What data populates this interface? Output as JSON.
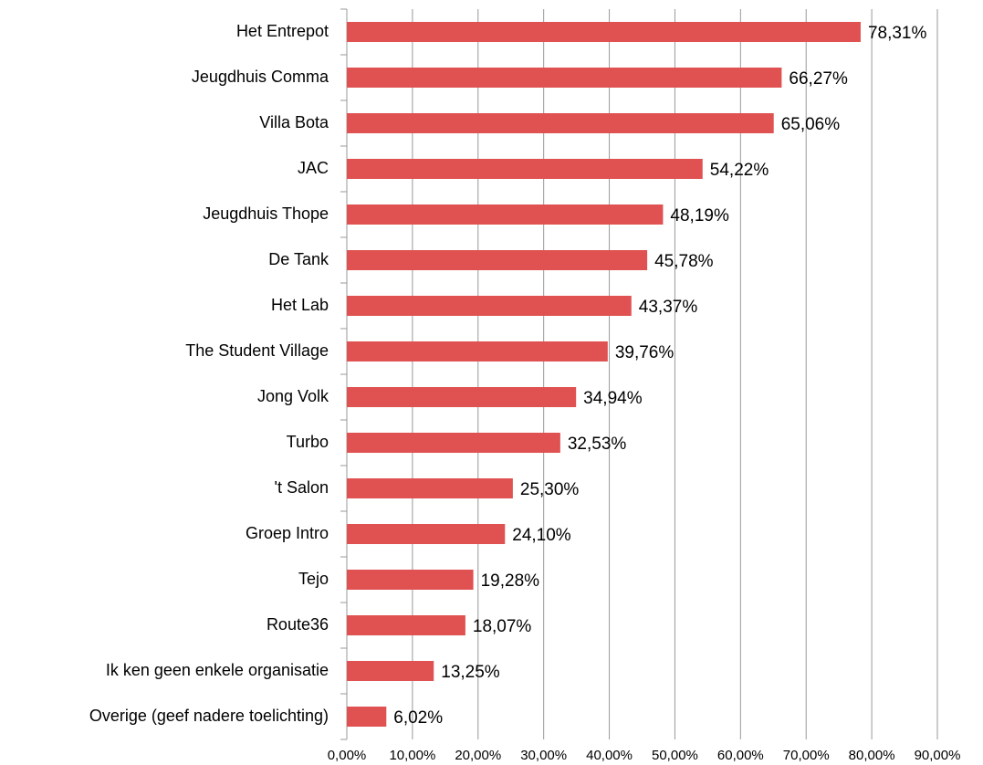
{
  "chart_data": {
    "type": "bar",
    "orientation": "horizontal",
    "color": "#e05252",
    "grid": true,
    "categories": [
      "Het Entrepot",
      "Jeugdhuis Comma",
      "Villa Bota",
      "JAC",
      "Jeugdhuis Thope",
      "De Tank",
      "Het Lab",
      "The Student Village",
      "Jong Volk",
      "Turbo",
      "'t Salon",
      "Groep Intro",
      "Tejo",
      "Route36",
      "Ik ken geen enkele organisatie",
      "Overige (geef nadere toelichting)"
    ],
    "values": [
      78.31,
      66.27,
      65.06,
      54.22,
      48.19,
      45.78,
      43.37,
      39.76,
      34.94,
      32.53,
      25.3,
      24.1,
      19.28,
      18.07,
      13.25,
      6.02
    ],
    "value_labels": [
      "78,31%",
      "66,27%",
      "65,06%",
      "54,22%",
      "48,19%",
      "45,78%",
      "43,37%",
      "39,76%",
      "34,94%",
      "32,53%",
      "25,30%",
      "24,10%",
      "19,28%",
      "18,07%",
      "13,25%",
      "6,02%"
    ],
    "xlim": [
      0,
      90
    ],
    "xticks": [
      {
        "value": 0,
        "label": "0,00%"
      },
      {
        "value": 10,
        "label": "10,00%"
      },
      {
        "value": 20,
        "label": "20,00%"
      },
      {
        "value": 30,
        "label": "30,00%"
      },
      {
        "value": 40,
        "label": "40,00%"
      },
      {
        "value": 50,
        "label": "50,00%"
      },
      {
        "value": 60,
        "label": "60,00%"
      },
      {
        "value": 70,
        "label": "70,00%"
      },
      {
        "value": 80,
        "label": "80,00%"
      },
      {
        "value": 90,
        "label": "90,00%"
      }
    ]
  }
}
